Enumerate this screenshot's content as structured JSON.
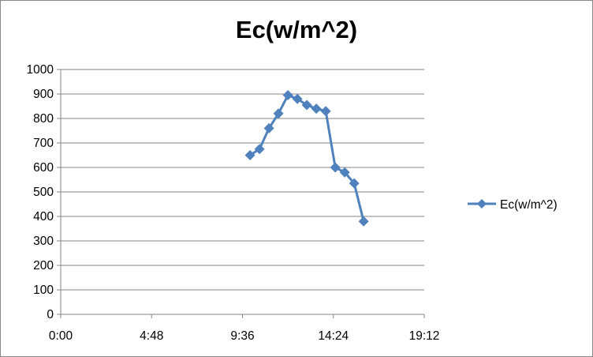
{
  "chart_data": {
    "type": "line",
    "title": "Ec(w/m^2)",
    "xlabel": "",
    "ylabel": "",
    "ylim": [
      0,
      1000
    ],
    "y_ticks": [
      "0",
      "100",
      "200",
      "300",
      "400",
      "500",
      "600",
      "700",
      "800",
      "900",
      "1000"
    ],
    "xlim": [
      "0:00",
      "19:12"
    ],
    "x_ticks": [
      "0:00",
      "4:48",
      "9:36",
      "14:24",
      "19:12"
    ],
    "grid": "horizontal",
    "legend": "right",
    "color": "#4f81bd",
    "series": [
      {
        "name": "Ec(w/m^2)",
        "x": [
          "10:00",
          "10:30",
          "11:00",
          "11:30",
          "12:00",
          "12:30",
          "13:00",
          "13:30",
          "14:00",
          "14:30",
          "15:00",
          "15:30",
          "16:00"
        ],
        "values": [
          650,
          675,
          760,
          820,
          895,
          880,
          855,
          840,
          830,
          600,
          580,
          535,
          380
        ]
      }
    ]
  }
}
